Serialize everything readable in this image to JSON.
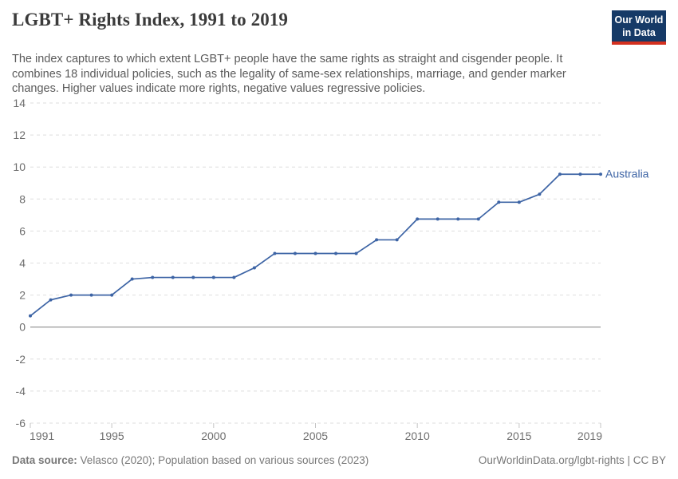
{
  "header": {
    "title": "LGBT+ Rights Index, 1991 to 2019",
    "subtitle": "The index captures to which extent LGBT+ people have the same rights as straight and cisgender people. It combines 18 individual policies, such as the legality of same-sex relationships, marriage, and gender marker changes. Higher values indicate more rights, negative values regressive policies.",
    "logo": {
      "line1": "Our World",
      "line2": "in Data",
      "bg_color": "#163a67",
      "accent_color": "#d4301f"
    }
  },
  "chart_data": {
    "type": "line",
    "title": "LGBT+ Rights Index, 1991 to 2019",
    "xlabel": "",
    "ylabel": "",
    "xlim": [
      1991,
      2019
    ],
    "ylim": [
      -6,
      14
    ],
    "x_ticks": [
      1991,
      1995,
      2000,
      2005,
      2010,
      2015,
      2019
    ],
    "y_ticks": [
      14,
      12,
      10,
      8,
      6,
      4,
      2,
      0,
      -2,
      -4,
      -6
    ],
    "grid": "horizontal-dashed",
    "zero_line": true,
    "legend_position": "end-of-line-label",
    "series": [
      {
        "name": "Australia",
        "color": "#3d64a5",
        "x": [
          1991,
          1992,
          1993,
          1994,
          1995,
          1996,
          1997,
          1998,
          1999,
          2000,
          2001,
          2002,
          2003,
          2004,
          2005,
          2006,
          2007,
          2008,
          2009,
          2010,
          2011,
          2012,
          2013,
          2014,
          2015,
          2016,
          2017,
          2018,
          2019
        ],
        "values": [
          0.7,
          1.7,
          2.0,
          2.0,
          2.0,
          3.0,
          3.1,
          3.1,
          3.1,
          3.1,
          3.1,
          3.7,
          4.6,
          4.6,
          4.6,
          4.6,
          4.6,
          5.45,
          5.45,
          6.75,
          6.75,
          6.75,
          6.75,
          7.8,
          7.8,
          8.3,
          9.55,
          9.55,
          9.55
        ]
      }
    ]
  },
  "footer": {
    "source_label": "Data source:",
    "source_text": "Velasco (2020); Population based on various sources (2023)",
    "credit": "OurWorldinData.org/lgbt-rights | CC BY"
  }
}
